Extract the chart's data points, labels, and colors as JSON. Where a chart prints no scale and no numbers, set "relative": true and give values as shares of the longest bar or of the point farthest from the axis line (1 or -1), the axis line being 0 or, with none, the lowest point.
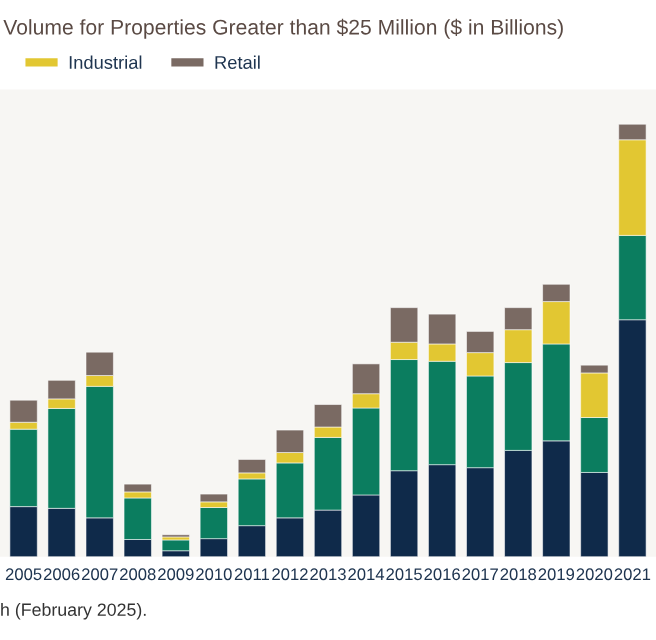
{
  "chart_data": {
    "type": "bar",
    "stacked": true,
    "relative": true,
    "title": "Volume for Properties Greater than $25 Million ($ in Billions)",
    "categories": [
      "2005",
      "2006",
      "2007",
      "2008",
      "2009",
      "2010",
      "2011",
      "2012",
      "2013",
      "2014",
      "2015",
      "2016",
      "2017",
      "2018",
      "2019",
      "2020",
      "2021"
    ],
    "series": [
      {
        "color": "#0f2a4a",
        "values": [
          0.116,
          0.112,
          0.09,
          0.04,
          0.014,
          0.042,
          0.072,
          0.09,
          0.108,
          0.143,
          0.199,
          0.213,
          0.206,
          0.246,
          0.268,
          0.195,
          0.548
        ]
      },
      {
        "color": "#0b7d5f",
        "values": [
          0.179,
          0.231,
          0.304,
          0.096,
          0.025,
          0.072,
          0.108,
          0.127,
          0.168,
          0.201,
          0.257,
          0.239,
          0.212,
          0.203,
          0.224,
          0.127,
          0.195
        ]
      },
      {
        "name": "Industrial",
        "color": "#e2c732",
        "values": [
          0.016,
          0.022,
          0.025,
          0.014,
          0.007,
          0.013,
          0.014,
          0.024,
          0.024,
          0.033,
          0.04,
          0.04,
          0.054,
          0.076,
          0.098,
          0.103,
          0.221
        ]
      },
      {
        "name": "Retail",
        "color": "#7a6a63",
        "values": [
          0.051,
          0.043,
          0.054,
          0.018,
          0.005,
          0.018,
          0.031,
          0.052,
          0.052,
          0.069,
          0.08,
          0.069,
          0.049,
          0.051,
          0.04,
          0.018,
          0.036
        ]
      }
    ],
    "legend": "top left",
    "annotations": [
      "h (February 2025)."
    ]
  }
}
